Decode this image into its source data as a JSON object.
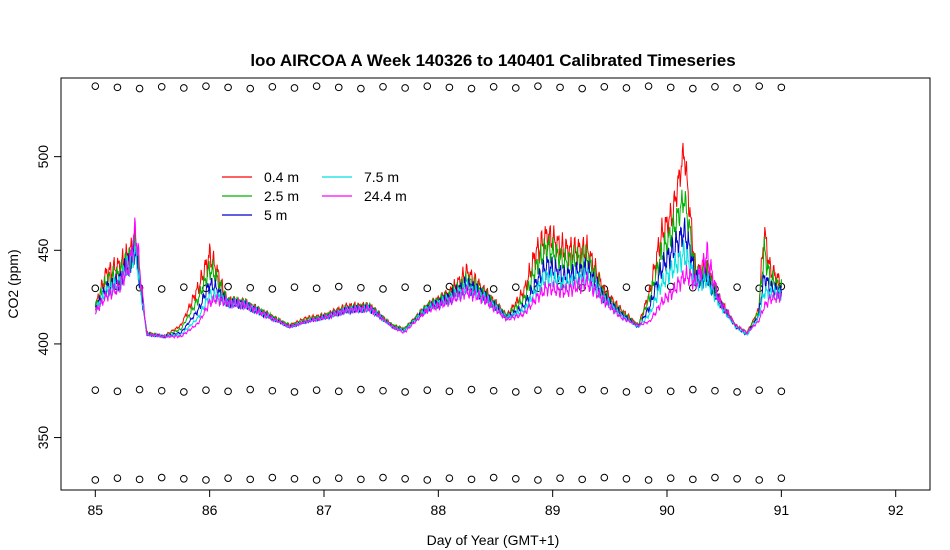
{
  "chart_data": {
    "type": "line",
    "title": "loo AIRCOA A  Week 140326 to 140401  Calibrated Timeseries",
    "xlabel": "Day of Year (GMT+1)",
    "ylabel": "CO2 (ppm)",
    "xlim": [
      84.7,
      92.3
    ],
    "ylim": [
      322,
      542
    ],
    "xticks": [
      85,
      86,
      87,
      88,
      89,
      90,
      91,
      92
    ],
    "yticks": [
      350,
      400,
      450,
      500
    ],
    "grid": false,
    "legend_position": "top-left",
    "series": [
      {
        "name": "0.4 m",
        "color": "#ff0000",
        "x": [
          85.0,
          85.1,
          85.2,
          85.3,
          85.35,
          85.45,
          85.6,
          85.75,
          85.9,
          86.0,
          86.05,
          86.15,
          86.3,
          86.5,
          86.7,
          86.85,
          87.0,
          87.2,
          87.4,
          87.6,
          87.7,
          87.9,
          88.1,
          88.25,
          88.4,
          88.6,
          88.75,
          88.85,
          88.95,
          89.1,
          89.3,
          89.45,
          89.6,
          89.75,
          89.85,
          89.95,
          90.05,
          90.15,
          90.2,
          90.25,
          90.35,
          90.45,
          90.6,
          90.7,
          90.8,
          90.85,
          90.9,
          91.0
        ],
        "y": [
          420,
          438,
          441,
          448,
          456,
          406,
          404,
          410,
          430,
          447,
          441,
          423,
          422,
          416,
          410,
          414,
          415,
          420,
          420,
          410,
          408,
          420,
          427,
          438,
          428,
          415,
          428,
          448,
          458,
          450,
          450,
          428,
          418,
          410,
          428,
          458,
          470,
          503,
          470,
          438,
          440,
          425,
          410,
          406,
          418,
          460,
          440,
          432
        ]
      },
      {
        "name": "2.5 m",
        "color": "#00b000",
        "x": [
          85.0,
          85.1,
          85.2,
          85.3,
          85.35,
          85.45,
          85.6,
          85.75,
          85.9,
          86.0,
          86.05,
          86.15,
          86.3,
          86.5,
          86.7,
          86.85,
          87.0,
          87.2,
          87.4,
          87.6,
          87.7,
          87.9,
          88.1,
          88.25,
          88.4,
          88.6,
          88.75,
          88.85,
          88.95,
          89.1,
          89.3,
          89.45,
          89.6,
          89.75,
          89.85,
          89.95,
          90.05,
          90.15,
          90.2,
          90.25,
          90.35,
          90.45,
          90.6,
          90.7,
          90.8,
          90.85,
          90.9,
          91.0
        ],
        "y": [
          420,
          434,
          437,
          446,
          453,
          406,
          404,
          408,
          424,
          440,
          437,
          423,
          422,
          416,
          410,
          413,
          415,
          419,
          420,
          410,
          408,
          420,
          426,
          434,
          427,
          415,
          424,
          440,
          452,
          444,
          446,
          426,
          417,
          410,
          425,
          448,
          460,
          478,
          460,
          436,
          438,
          424,
          410,
          406,
          417,
          450,
          435,
          430
        ]
      },
      {
        "name": "5 m",
        "color": "#0000cc",
        "x": [
          85.0,
          85.1,
          85.2,
          85.3,
          85.35,
          85.45,
          85.6,
          85.75,
          85.9,
          86.0,
          86.05,
          86.15,
          86.3,
          86.5,
          86.7,
          86.85,
          87.0,
          87.2,
          87.4,
          87.6,
          87.7,
          87.9,
          88.1,
          88.25,
          88.4,
          88.6,
          88.75,
          88.85,
          88.95,
          89.1,
          89.3,
          89.45,
          89.6,
          89.75,
          89.85,
          89.95,
          90.05,
          90.15,
          90.2,
          90.25,
          90.35,
          90.45,
          90.6,
          90.7,
          90.8,
          90.85,
          90.9,
          91.0
        ],
        "y": [
          419,
          430,
          433,
          444,
          451,
          405,
          404,
          406,
          418,
          432,
          430,
          422,
          421,
          415,
          409,
          412,
          414,
          418,
          419,
          409,
          407,
          419,
          425,
          432,
          426,
          414,
          420,
          432,
          442,
          436,
          440,
          425,
          416,
          409,
          420,
          440,
          450,
          460,
          450,
          434,
          436,
          423,
          409,
          405,
          415,
          436,
          430,
          428
        ]
      },
      {
        "name": "7.5 m",
        "color": "#00e0e0",
        "x": [
          85.0,
          85.1,
          85.2,
          85.3,
          85.35,
          85.45,
          85.6,
          85.75,
          85.9,
          86.0,
          86.05,
          86.15,
          86.3,
          86.5,
          86.7,
          86.85,
          87.0,
          87.2,
          87.4,
          87.6,
          87.7,
          87.9,
          88.1,
          88.25,
          88.4,
          88.6,
          88.75,
          88.85,
          88.95,
          89.1,
          89.3,
          89.45,
          89.6,
          89.75,
          89.85,
          89.95,
          90.05,
          90.15,
          90.2,
          90.25,
          90.35,
          90.45,
          90.6,
          90.7,
          90.8,
          90.85,
          90.9,
          91.0
        ],
        "y": [
          418,
          428,
          432,
          443,
          450,
          405,
          404,
          405,
          414,
          426,
          426,
          422,
          421,
          415,
          409,
          412,
          414,
          418,
          419,
          409,
          407,
          419,
          424,
          430,
          425,
          414,
          418,
          428,
          436,
          432,
          436,
          424,
          415,
          409,
          416,
          432,
          440,
          448,
          442,
          432,
          434,
          422,
          409,
          405,
          414,
          428,
          427,
          427
        ]
      },
      {
        "name": "24.4 m",
        "color": "#ff00ff",
        "x": [
          85.0,
          85.1,
          85.2,
          85.3,
          85.35,
          85.45,
          85.6,
          85.75,
          85.9,
          86.0,
          86.05,
          86.15,
          86.3,
          86.5,
          86.7,
          86.85,
          87.0,
          87.2,
          87.4,
          87.6,
          87.7,
          87.9,
          88.1,
          88.25,
          88.4,
          88.6,
          88.75,
          88.85,
          88.95,
          89.1,
          89.3,
          89.45,
          89.6,
          89.75,
          89.85,
          89.95,
          90.05,
          90.15,
          90.2,
          90.25,
          90.35,
          90.45,
          90.6,
          90.7,
          90.8,
          90.85,
          90.9,
          91.0
        ],
        "y": [
          417,
          426,
          430,
          442,
          462,
          405,
          404,
          404,
          411,
          422,
          424,
          422,
          421,
          415,
          409,
          412,
          414,
          418,
          419,
          409,
          406,
          418,
          423,
          428,
          424,
          413,
          416,
          424,
          430,
          428,
          433,
          423,
          414,
          410,
          412,
          422,
          428,
          436,
          436,
          432,
          448,
          424,
          410,
          406,
          412,
          420,
          424,
          426
        ]
      }
    ],
    "markers": {
      "symbol": "open-circle",
      "rows_y": [
        537,
        430,
        375,
        328
      ],
      "x_start": 85.0,
      "x_end": 91.0,
      "count_per_row": 32
    }
  }
}
